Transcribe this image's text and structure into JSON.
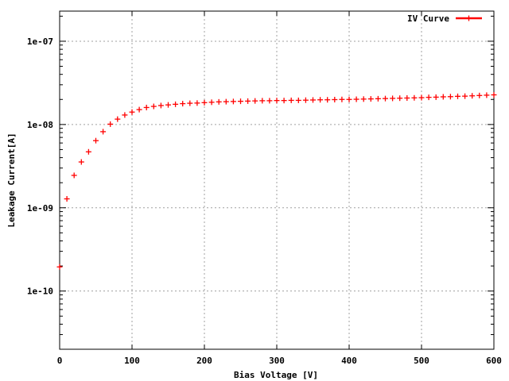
{
  "chart_data": {
    "type": "scatter",
    "title": "",
    "xlabel": "Bias Voltage [V]",
    "ylabel": "Leakage Current[A]",
    "xlim": [
      0,
      600
    ],
    "ylim": [
      2e-11,
      2.3e-07
    ],
    "yscale": "log",
    "grid": true,
    "legend": "top-right",
    "x_ticks": [
      0,
      100,
      200,
      300,
      400,
      500,
      600
    ],
    "x_tick_labels": [
      "0",
      "100",
      "200",
      "300",
      "400",
      "500",
      "600"
    ],
    "y_ticks": [
      1e-10,
      1e-09,
      1e-08,
      1e-07
    ],
    "y_tick_labels": [
      "1e-10",
      "1e-09",
      "1e-08",
      "1e-07"
    ],
    "series": [
      {
        "name": "IV Curve",
        "color": "#ff0000",
        "x": [
          0,
          10,
          20,
          30,
          40,
          50,
          60,
          70,
          80,
          90,
          100,
          110,
          120,
          130,
          140,
          150,
          160,
          170,
          180,
          190,
          200,
          210,
          220,
          230,
          240,
          250,
          260,
          270,
          280,
          290,
          300,
          310,
          320,
          330,
          340,
          350,
          360,
          370,
          380,
          390,
          400,
          410,
          420,
          430,
          440,
          450,
          460,
          470,
          480,
          490,
          500,
          510,
          520,
          530,
          540,
          550,
          560,
          570,
          580,
          590,
          600
        ],
        "y": [
          1.95e-10,
          1.28e-09,
          2.45e-09,
          3.55e-09,
          4.7e-09,
          6.4e-09,
          8.2e-09,
          1.01e-08,
          1.16e-08,
          1.3e-08,
          1.41e-08,
          1.51e-08,
          1.6e-08,
          1.65e-08,
          1.69e-08,
          1.72e-08,
          1.75e-08,
          1.78e-08,
          1.8e-08,
          1.81e-08,
          1.83e-08,
          1.85e-08,
          1.87e-08,
          1.88e-08,
          1.89e-08,
          1.9e-08,
          1.91e-08,
          1.92e-08,
          1.93e-08,
          1.93e-08,
          1.94e-08,
          1.94e-08,
          1.95e-08,
          1.95e-08,
          1.96e-08,
          1.97e-08,
          1.98e-08,
          1.98e-08,
          1.99e-08,
          2e-08,
          2e-08,
          2.01e-08,
          2.02e-08,
          2.03e-08,
          2.04e-08,
          2.05e-08,
          2.06e-08,
          2.07e-08,
          2.08e-08,
          2.09e-08,
          2.1e-08,
          2.12e-08,
          2.13e-08,
          2.15e-08,
          2.16e-08,
          2.18e-08,
          2.19e-08,
          2.21e-08,
          2.23e-08,
          2.25e-08,
          2.27e-08
        ]
      }
    ]
  }
}
